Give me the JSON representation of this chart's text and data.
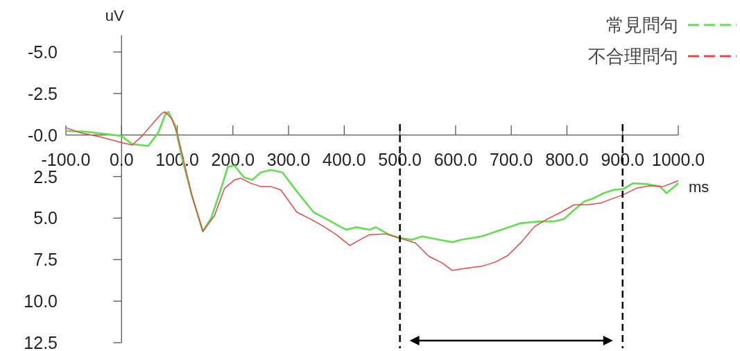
{
  "chart_data": {
    "type": "line",
    "xlabel": "ms",
    "ylabel": "uV",
    "xlim": [
      -100,
      1000
    ],
    "ylim": [
      12.5,
      -6
    ],
    "xticks": [
      {
        "value": -100,
        "label": "-100.0"
      },
      {
        "value": 0,
        "label": "0.0"
      },
      {
        "value": 100,
        "label": "100.0"
      },
      {
        "value": 200,
        "label": "200.0"
      },
      {
        "value": 300,
        "label": "300.0"
      },
      {
        "value": 400,
        "label": "400.0"
      },
      {
        "value": 500,
        "label": "500.0"
      },
      {
        "value": 600,
        "label": "600.0"
      },
      {
        "value": 700,
        "label": "700.0"
      },
      {
        "value": 800,
        "label": "800.0"
      },
      {
        "value": 900,
        "label": "900.0"
      },
      {
        "value": 1000,
        "label": "1000.0"
      }
    ],
    "yticks": [
      {
        "value": -5,
        "label": "-5.0"
      },
      {
        "value": -2.5,
        "label": "-2.5"
      },
      {
        "value": 0,
        "label": "-0.0"
      },
      {
        "value": 2.5,
        "label": "2.5"
      },
      {
        "value": 5,
        "label": "5.0"
      },
      {
        "value": 7.5,
        "label": "7.5"
      },
      {
        "value": 10,
        "label": "10.0"
      },
      {
        "value": 12.5,
        "label": "12.5"
      }
    ],
    "grid": false,
    "legend": "top right",
    "ref_lines": [
      {
        "axis": "x",
        "value": 500,
        "color": "#000000",
        "line_style": "dashed"
      },
      {
        "axis": "x",
        "value": 900,
        "color": "#000000",
        "line_style": "dashed"
      }
    ],
    "series": [
      {
        "name": "常見問句",
        "color": "#66dd55",
        "x": [
          -100,
          -64,
          0,
          19,
          48,
          66,
          78,
          84,
          96,
          108,
          126,
          146,
          161,
          179,
          191,
          203,
          220,
          235,
          250,
          268,
          289,
          315,
          345,
          368,
          392,
          404,
          422,
          445,
          457,
          481,
          499,
          522,
          540,
          570,
          594,
          611,
          647,
          682,
          718,
          754,
          777,
          795,
          813,
          831,
          848,
          866,
          884,
          901,
          919,
          943,
          967,
          979,
          1000
        ],
        "values": [
          -0.25,
          -0.2,
          0.05,
          0.55,
          0.65,
          -0.15,
          -1.2,
          -1.4,
          -0.6,
          1.3,
          3.6,
          5.8,
          5.0,
          3.2,
          1.9,
          1.85,
          2.55,
          2.7,
          2.25,
          2.1,
          2.25,
          3.4,
          4.65,
          5.05,
          5.5,
          5.7,
          5.55,
          5.7,
          5.55,
          6.0,
          6.2,
          6.3,
          6.1,
          6.3,
          6.45,
          6.3,
          6.1,
          5.7,
          5.3,
          5.2,
          5.2,
          5.05,
          4.5,
          4.0,
          3.8,
          3.5,
          3.3,
          3.25,
          2.9,
          2.95,
          3.1,
          3.5,
          2.9
        ]
      },
      {
        "name": "不合理問句",
        "color": "#e8474a",
        "x": [
          -100,
          -76,
          -40,
          0,
          19,
          37,
          55,
          72,
          78,
          90,
          100,
          126,
          146,
          167,
          185,
          203,
          214,
          232,
          250,
          268,
          286,
          315,
          339,
          363,
          386,
          410,
          428,
          445,
          475,
          499,
          528,
          552,
          576,
          594,
          623,
          647,
          671,
          694,
          718,
          742,
          765,
          789,
          813,
          836,
          860,
          884,
          901,
          925,
          949,
          973,
          1000
        ],
        "values": [
          -0.45,
          -0.15,
          0.1,
          0.45,
          0.6,
          0.05,
          -0.65,
          -1.3,
          -1.4,
          -1.0,
          -0.1,
          3.6,
          5.8,
          4.85,
          3.2,
          2.7,
          2.6,
          2.9,
          3.1,
          3.1,
          3.3,
          4.65,
          5.05,
          5.5,
          6.0,
          6.65,
          6.3,
          6.0,
          5.95,
          6.2,
          6.5,
          7.3,
          7.7,
          8.15,
          8.0,
          7.9,
          7.65,
          7.25,
          6.45,
          5.5,
          5.05,
          4.65,
          4.2,
          4.2,
          4.1,
          3.8,
          3.6,
          3.2,
          3.05,
          3.1,
          2.75
        ]
      }
    ]
  }
}
